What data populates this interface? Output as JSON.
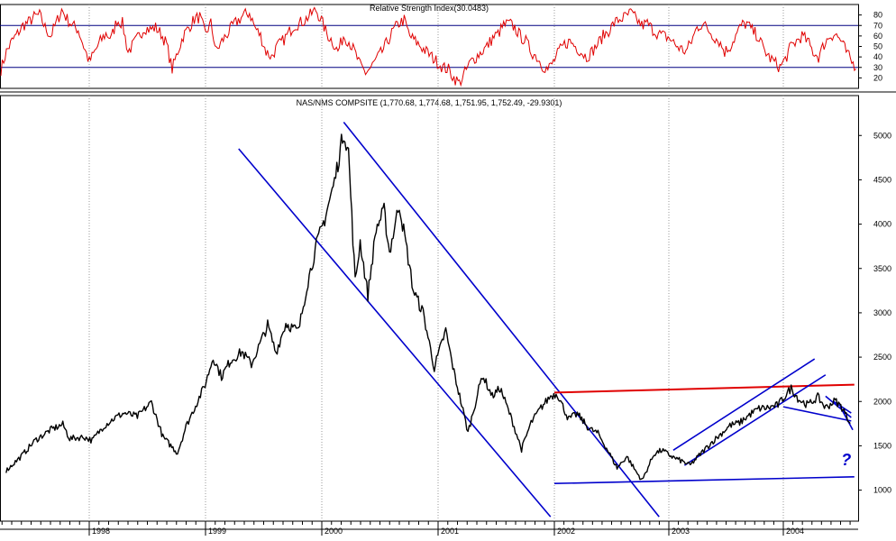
{
  "chart_data": [
    {
      "type": "line",
      "title": "Relative Strength Index(30.0483)",
      "ylim": [
        10,
        90
      ],
      "yticks": [
        20,
        30,
        40,
        50,
        60,
        70,
        80
      ],
      "reference_lines": [
        30,
        70
      ],
      "grid": true,
      "series": [
        {
          "color": "#e00000",
          "values": [
            28,
            45,
            55,
            62,
            70,
            73,
            78,
            80,
            68,
            60,
            72,
            85,
            76,
            70,
            66,
            50,
            35,
            45,
            55,
            62,
            58,
            75,
            72,
            45,
            52,
            60,
            68,
            66,
            68,
            62,
            52,
            28,
            45,
            60,
            68,
            76,
            78,
            62,
            72,
            45,
            55,
            62,
            70,
            75,
            80,
            82,
            68,
            60,
            45,
            40,
            50,
            55,
            62,
            70,
            72,
            75,
            80,
            85,
            75,
            62,
            55,
            45,
            60,
            55,
            45,
            32,
            25,
            30,
            38,
            45,
            55,
            65,
            72,
            75,
            60,
            55,
            50,
            45,
            40,
            35,
            30,
            28,
            20,
            15,
            25,
            35,
            40,
            45,
            50,
            58,
            62,
            70,
            72,
            68,
            60,
            55,
            45,
            40,
            32,
            28,
            35,
            45,
            52,
            55,
            50,
            45,
            40,
            45,
            52,
            60,
            65,
            72,
            76,
            78,
            82,
            76,
            70,
            72,
            66,
            62,
            60,
            58,
            52,
            48,
            45,
            55,
            68,
            72,
            66,
            60,
            55,
            45,
            50,
            60,
            70,
            72,
            65,
            60,
            48,
            40,
            35,
            30,
            38,
            50,
            55,
            60,
            55,
            45,
            40,
            52,
            60,
            62,
            56,
            45,
            35,
            30
          ]
        }
      ]
    },
    {
      "type": "line",
      "title": "NAS/NMS COMPSITE (1,770.68, 1,774.68, 1,751.95, 1,752.49, -29.9301)",
      "x_range": [
        "1997-04",
        "2004-08"
      ],
      "xtick_labels": [
        "1998",
        "1999",
        "2000",
        "2001",
        "2002",
        "2003",
        "2004"
      ],
      "ylim": [
        650,
        5450
      ],
      "yticks": [
        1000,
        1500,
        2000,
        2500,
        3000,
        3500,
        4000,
        4500,
        5000
      ],
      "grid": true,
      "series": [
        {
          "color": "#000000",
          "points": [
            [
              "1997-04-15",
              1220
            ],
            [
              "1997-06-01",
              1380
            ],
            [
              "1997-07-15",
              1560
            ],
            [
              "1997-09-01",
              1680
            ],
            [
              "1997-10-10",
              1740
            ],
            [
              "1997-11-01",
              1580
            ],
            [
              "1997-12-15",
              1600
            ],
            [
              "1998-01-10",
              1560
            ],
            [
              "1998-02-15",
              1720
            ],
            [
              "1998-03-20",
              1810
            ],
            [
              "1998-04-20",
              1870
            ],
            [
              "1998-06-01",
              1830
            ],
            [
              "1998-07-15",
              1990
            ],
            [
              "1998-08-20",
              1600
            ],
            [
              "1998-10-05",
              1420
            ],
            [
              "1998-11-01",
              1720
            ],
            [
              "1998-12-31",
              2190
            ],
            [
              "1999-01-25",
              2500
            ],
            [
              "1999-02-20",
              2280
            ],
            [
              "1999-03-20",
              2460
            ],
            [
              "1999-04-25",
              2560
            ],
            [
              "1999-05-25",
              2420
            ],
            [
              "1999-06-20",
              2640
            ],
            [
              "1999-07-15",
              2860
            ],
            [
              "1999-08-10",
              2550
            ],
            [
              "1999-09-10",
              2880
            ],
            [
              "1999-10-20",
              2790
            ],
            [
              "1999-11-15",
              3300
            ],
            [
              "1999-12-15",
              3760
            ],
            [
              "2000-01-10",
              4060
            ],
            [
              "2000-02-10",
              4480
            ],
            [
              "2000-03-10",
              5050
            ],
            [
              "2000-03-25",
              4820
            ],
            [
              "2000-04-15",
              3350
            ],
            [
              "2000-05-01",
              3800
            ],
            [
              "2000-05-25",
              3200
            ],
            [
              "2000-06-20",
              3950
            ],
            [
              "2000-07-15",
              4150
            ],
            [
              "2000-08-01",
              3680
            ],
            [
              "2000-09-01",
              4230
            ],
            [
              "2000-09-25",
              3700
            ],
            [
              "2000-10-15",
              3250
            ],
            [
              "2000-11-15",
              3000
            ],
            [
              "2000-12-20",
              2380
            ],
            [
              "2001-01-25",
              2800
            ],
            [
              "2001-02-20",
              2330
            ],
            [
              "2001-03-20",
              1900
            ],
            [
              "2001-04-05",
              1650
            ],
            [
              "2001-05-20",
              2300
            ],
            [
              "2001-06-20",
              2060
            ],
            [
              "2001-07-15",
              2150
            ],
            [
              "2001-08-20",
              1800
            ],
            [
              "2001-09-20",
              1460
            ],
            [
              "2001-10-20",
              1760
            ],
            [
              "2001-11-20",
              1930
            ],
            [
              "2001-12-20",
              2060
            ],
            [
              "2002-01-10",
              2090
            ],
            [
              "2002-02-15",
              1800
            ],
            [
              "2002-03-15",
              1860
            ],
            [
              "2002-04-20",
              1700
            ],
            [
              "2002-05-20",
              1640
            ],
            [
              "2002-06-20",
              1450
            ],
            [
              "2002-07-20",
              1250
            ],
            [
              "2002-08-20",
              1380
            ],
            [
              "2002-09-20",
              1200
            ],
            [
              "2002-10-08",
              1110
            ],
            [
              "2002-11-15",
              1410
            ],
            [
              "2002-12-10",
              1450
            ],
            [
              "2003-01-15",
              1370
            ],
            [
              "2003-02-15",
              1320
            ],
            [
              "2003-03-10",
              1280
            ],
            [
              "2003-04-15",
              1420
            ],
            [
              "2003-05-15",
              1530
            ],
            [
              "2003-06-15",
              1630
            ],
            [
              "2003-07-15",
              1730
            ],
            [
              "2003-08-15",
              1760
            ],
            [
              "2003-09-15",
              1850
            ],
            [
              "2003-10-15",
              1920
            ],
            [
              "2003-11-15",
              1930
            ],
            [
              "2003-12-15",
              1960
            ],
            [
              "2004-01-26",
              2150
            ],
            [
              "2004-02-20",
              2020
            ],
            [
              "2004-03-20",
              1960
            ],
            [
              "2004-04-20",
              2050
            ],
            [
              "2004-05-15",
              1930
            ],
            [
              "2004-06-15",
              2010
            ],
            [
              "2004-07-10",
              1920
            ],
            [
              "2004-07-20",
              1840
            ],
            [
              "2004-08-02",
              1752
            ]
          ]
        }
      ],
      "trendlines": [
        {
          "color": "#0000cc",
          "from": [
            "1999-04-15",
            4850
          ],
          "to": [
            "2001-12-20",
            700
          ]
        },
        {
          "color": "#0000cc",
          "from": [
            "2000-03-10",
            5150
          ],
          "to": [
            "2002-12-01",
            700
          ]
        },
        {
          "color": "#0000cc",
          "from": [
            "2002-01-01",
            1075
          ],
          "to": [
            "2004-08-15",
            1150
          ]
        },
        {
          "color": "#e00000",
          "from": [
            "2002-01-01",
            2100
          ],
          "to": [
            "2004-08-15",
            2190
          ]
        },
        {
          "color": "#0000cc",
          "from": [
            "2003-01-15",
            1450
          ],
          "to": [
            "2004-04-10",
            2480
          ]
        },
        {
          "color": "#0000cc",
          "from": [
            "2003-02-20",
            1280
          ],
          "to": [
            "2004-05-15",
            2300
          ]
        },
        {
          "color": "#0000cc",
          "from": [
            "2004-01-01",
            1940
          ],
          "to": [
            "2004-08-05",
            1780
          ]
        },
        {
          "color": "#0000cc",
          "from": [
            "2004-05-15",
            2060
          ],
          "to": [
            "2004-08-05",
            1820
          ]
        },
        {
          "color": "#0000cc",
          "from": [
            "2004-06-10",
            2000
          ],
          "to": [
            "2004-08-05",
            1870
          ]
        },
        {
          "color": "#0000cc",
          "from": [
            "2004-07-01",
            1940
          ],
          "to": [
            "2004-08-10",
            1680
          ]
        }
      ],
      "annotations": [
        {
          "text": "?",
          "color": "#0000cc",
          "x": "2004-07-20",
          "y": 1280
        }
      ]
    }
  ]
}
